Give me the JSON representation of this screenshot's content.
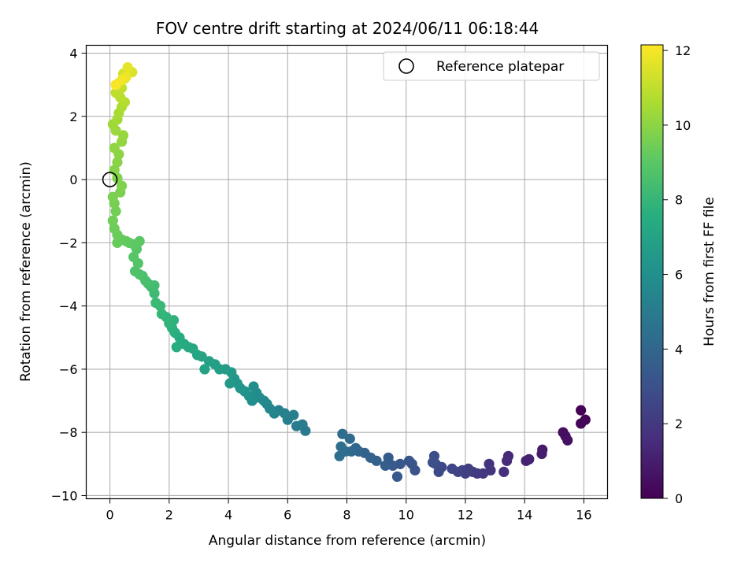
{
  "chart_data": {
    "type": "scatter",
    "title": "FOV centre drift starting at 2024/06/11 06:18:44",
    "xlabel": "Angular distance from reference (arcmin)",
    "ylabel": "Rotation from reference (arcmin)",
    "xlim": [
      -0.8,
      16.8
    ],
    "ylim": [
      -10.1,
      4.25
    ],
    "xticks": [
      "0",
      "2",
      "4",
      "6",
      "8",
      "10",
      "12",
      "14",
      "16"
    ],
    "yticks": [
      "−10",
      "−8",
      "−6",
      "−4",
      "−2",
      "0",
      "2",
      "4"
    ],
    "grid": true,
    "legend": {
      "position": "top-right",
      "label": "Reference platepar"
    },
    "reference_point": {
      "x": 0,
      "y": 0
    },
    "colorbar": {
      "label": "Hours from first FF file",
      "range": [
        0,
        12.15
      ],
      "ticks": [
        "0",
        "2",
        "4",
        "6",
        "8",
        "10",
        "12"
      ],
      "colormap": "viridis"
    },
    "series": [
      {
        "points": [
          [
            15.9,
            -7.3,
            0.05
          ],
          [
            16.05,
            -7.6,
            0.12
          ],
          [
            15.9,
            -7.72,
            0.18
          ],
          [
            15.3,
            -8.0,
            0.4
          ],
          [
            15.38,
            -8.12,
            0.48
          ],
          [
            15.45,
            -8.25,
            0.56
          ],
          [
            14.6,
            -8.55,
            0.85
          ],
          [
            14.58,
            -8.68,
            0.92
          ],
          [
            14.15,
            -8.85,
            1.1
          ],
          [
            14.05,
            -8.9,
            1.18
          ],
          [
            13.45,
            -8.75,
            1.4
          ],
          [
            13.4,
            -8.9,
            1.48
          ],
          [
            13.3,
            -9.25,
            1.6
          ],
          [
            12.8,
            -9.0,
            1.78
          ],
          [
            12.85,
            -9.2,
            1.85
          ],
          [
            12.6,
            -9.3,
            1.95
          ],
          [
            12.4,
            -9.3,
            2.05
          ],
          [
            12.25,
            -9.25,
            2.12
          ],
          [
            12.1,
            -9.15,
            2.2
          ],
          [
            12.0,
            -9.3,
            2.28
          ],
          [
            11.9,
            -9.2,
            2.36
          ],
          [
            11.75,
            -9.25,
            2.45
          ],
          [
            11.55,
            -9.15,
            2.55
          ],
          [
            11.2,
            -9.1,
            2.65
          ],
          [
            11.1,
            -9.25,
            2.72
          ],
          [
            11.0,
            -9.0,
            2.8
          ],
          [
            10.95,
            -8.75,
            2.88
          ],
          [
            10.9,
            -8.95,
            2.95
          ],
          [
            10.3,
            -9.2,
            3.05
          ],
          [
            10.2,
            -9.0,
            3.12
          ],
          [
            10.1,
            -8.9,
            3.2
          ],
          [
            9.8,
            -9.0,
            3.3
          ],
          [
            9.7,
            -9.4,
            3.38
          ],
          [
            9.55,
            -9.05,
            3.45
          ],
          [
            9.4,
            -8.8,
            3.52
          ],
          [
            9.3,
            -9.05,
            3.6
          ],
          [
            9.0,
            -8.9,
            3.7
          ],
          [
            8.8,
            -8.8,
            3.78
          ],
          [
            8.6,
            -8.65,
            3.86
          ],
          [
            8.4,
            -8.6,
            3.94
          ],
          [
            8.3,
            -8.5,
            4.02
          ],
          [
            8.15,
            -8.6,
            4.1
          ],
          [
            8.1,
            -8.2,
            4.18
          ],
          [
            7.95,
            -8.6,
            4.26
          ],
          [
            7.85,
            -8.05,
            4.32
          ],
          [
            7.8,
            -8.45,
            4.4
          ],
          [
            7.75,
            -8.75,
            4.48
          ],
          [
            6.6,
            -7.95,
            4.9
          ],
          [
            6.5,
            -7.75,
            4.98
          ],
          [
            6.3,
            -7.8,
            5.05
          ],
          [
            6.2,
            -7.45,
            5.12
          ],
          [
            6.0,
            -7.6,
            5.2
          ],
          [
            5.9,
            -7.4,
            5.28
          ],
          [
            5.7,
            -7.3,
            5.36
          ],
          [
            5.55,
            -7.4,
            5.44
          ],
          [
            5.4,
            -7.25,
            5.52
          ],
          [
            5.3,
            -7.1,
            5.6
          ],
          [
            5.2,
            -7.0,
            5.68
          ],
          [
            5.05,
            -6.9,
            5.76
          ],
          [
            4.95,
            -6.75,
            5.84
          ],
          [
            4.85,
            -6.55,
            5.92
          ],
          [
            4.8,
            -7.0,
            6.0
          ],
          [
            4.7,
            -6.85,
            6.08
          ],
          [
            4.55,
            -6.7,
            6.16
          ],
          [
            4.4,
            -6.6,
            6.24
          ],
          [
            4.3,
            -6.45,
            6.32
          ],
          [
            4.2,
            -6.3,
            6.4
          ],
          [
            4.1,
            -6.1,
            6.48
          ],
          [
            4.05,
            -6.45,
            6.56
          ],
          [
            3.9,
            -6.0,
            6.64
          ],
          [
            3.7,
            -6.0,
            6.72
          ],
          [
            3.55,
            -5.85,
            6.8
          ],
          [
            3.35,
            -5.75,
            6.88
          ],
          [
            3.2,
            -6.0,
            6.96
          ],
          [
            3.1,
            -5.6,
            7.04
          ],
          [
            2.95,
            -5.55,
            7.12
          ],
          [
            2.8,
            -5.35,
            7.2
          ],
          [
            2.65,
            -5.3,
            7.28
          ],
          [
            2.5,
            -5.2,
            7.36
          ],
          [
            2.35,
            -5.0,
            7.44
          ],
          [
            2.25,
            -5.3,
            7.52
          ],
          [
            2.2,
            -4.85,
            7.6
          ],
          [
            2.1,
            -4.7,
            7.68
          ],
          [
            2.15,
            -4.45,
            7.76
          ],
          [
            2.0,
            -4.55,
            7.84
          ],
          [
            1.9,
            -4.35,
            7.92
          ],
          [
            1.75,
            -4.25,
            8.0
          ],
          [
            1.7,
            -4.0,
            8.08
          ],
          [
            1.55,
            -3.9,
            8.16
          ],
          [
            1.5,
            -3.6,
            8.24
          ],
          [
            1.4,
            -3.4,
            8.32
          ],
          [
            1.5,
            -3.35,
            8.36
          ],
          [
            1.3,
            -3.3,
            8.4
          ],
          [
            1.2,
            -3.2,
            8.48
          ],
          [
            1.1,
            -3.05,
            8.56
          ],
          [
            1.0,
            -3.0,
            8.64
          ],
          [
            0.85,
            -2.9,
            8.72
          ],
          [
            0.95,
            -2.65,
            8.8
          ],
          [
            0.8,
            -2.45,
            8.88
          ],
          [
            0.9,
            -2.2,
            8.94
          ],
          [
            1.0,
            -1.95,
            9.0
          ],
          [
            0.8,
            -2.05,
            9.04
          ],
          [
            0.65,
            -2.0,
            9.1
          ],
          [
            0.55,
            -1.95,
            9.16
          ],
          [
            0.4,
            -1.9,
            9.22
          ],
          [
            0.25,
            -2.0,
            9.28
          ],
          [
            0.25,
            -1.75,
            9.34
          ],
          [
            0.15,
            -1.55,
            9.4
          ],
          [
            0.1,
            -1.3,
            9.46
          ],
          [
            0.2,
            -1.0,
            9.52
          ],
          [
            0.15,
            -0.75,
            9.58
          ],
          [
            0.1,
            -0.55,
            9.64
          ],
          [
            0.35,
            -0.4,
            9.7
          ],
          [
            0.4,
            -0.2,
            9.76
          ],
          [
            0.25,
            0.05,
            9.82
          ],
          [
            0.15,
            0.3,
            9.88
          ],
          [
            0.25,
            0.55,
            9.94
          ],
          [
            0.3,
            0.8,
            10.0
          ],
          [
            0.15,
            1.0,
            10.06
          ],
          [
            0.4,
            1.2,
            10.12
          ],
          [
            0.45,
            1.4,
            10.2
          ],
          [
            0.2,
            1.55,
            10.28
          ],
          [
            0.1,
            1.75,
            10.36
          ],
          [
            0.25,
            1.9,
            10.44
          ],
          [
            0.3,
            2.1,
            10.54
          ],
          [
            0.4,
            2.3,
            10.64
          ],
          [
            0.5,
            2.45,
            10.74
          ],
          [
            0.35,
            2.6,
            10.84
          ],
          [
            0.2,
            2.75,
            10.94
          ],
          [
            0.4,
            2.9,
            11.04
          ],
          [
            0.3,
            3.05,
            11.14
          ],
          [
            0.5,
            3.2,
            11.24
          ],
          [
            0.45,
            3.35,
            11.34
          ],
          [
            0.75,
            3.4,
            11.5
          ],
          [
            0.6,
            3.55,
            11.7
          ],
          [
            0.55,
            3.25,
            11.85
          ],
          [
            0.4,
            3.15,
            11.95
          ],
          [
            0.2,
            3.0,
            12.05
          ]
        ]
      }
    ]
  }
}
